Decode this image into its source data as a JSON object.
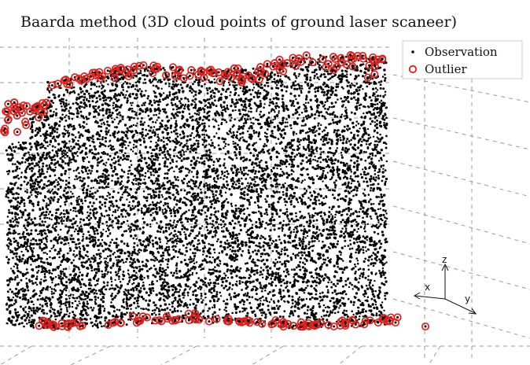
{
  "chart_data": {
    "type": "scatter",
    "title": "Baarda method (3D cloud points of ground laser scaneer)",
    "dimensions": "3D",
    "grid": true,
    "legend": {
      "placement": "top-right",
      "entries": [
        {
          "label": "Observation",
          "marker": "dot",
          "color": "#000000"
        },
        {
          "label": "Outlier",
          "marker": "open-circle",
          "color": "#e0201b"
        }
      ]
    },
    "axes": {
      "x_label": "x",
      "y_label": "y",
      "z_label": "z"
    },
    "series": [
      {
        "name": "Observation",
        "approx_count": 9000,
        "distribution": "dense uniform cloud filling the scanned wall surface"
      },
      {
        "name": "Outlier",
        "approx_count": 260,
        "distribution": "concentrated along the top and bottom edges of the cloud"
      }
    ],
    "colors": {
      "observation": "#000000",
      "outlier": "#e0201b",
      "grid": "#9a9a9a"
    }
  }
}
